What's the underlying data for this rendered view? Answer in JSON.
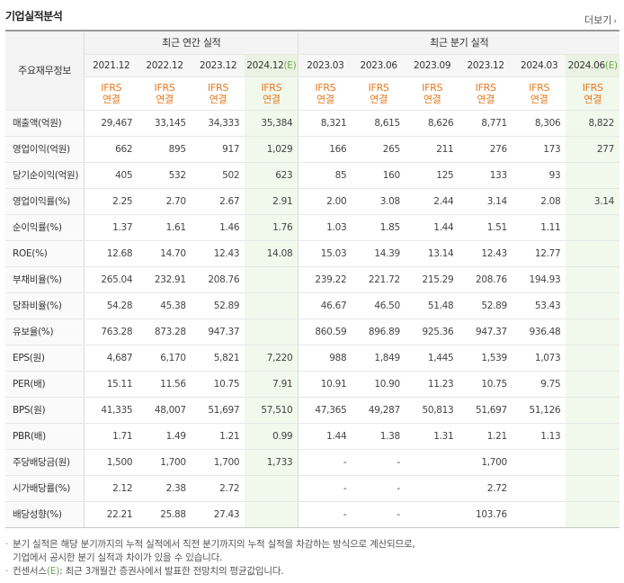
{
  "section": {
    "title": "기업실적분석",
    "more_label": "더보기"
  },
  "table": {
    "label_header": "주요재무정보",
    "annual_group": "최근 연간 실적",
    "quarterly_group": "최근 분기 실적",
    "periods": [
      {
        "label": "2021.12",
        "estimate": false
      },
      {
        "label": "2022.12",
        "estimate": false
      },
      {
        "label": "2023.12",
        "estimate": false
      },
      {
        "label": "2024.12",
        "estimate": true
      },
      {
        "label": "2023.03",
        "estimate": false
      },
      {
        "label": "2023.06",
        "estimate": false
      },
      {
        "label": "2023.09",
        "estimate": false
      },
      {
        "label": "2023.12",
        "estimate": false
      },
      {
        "label": "2024.03",
        "estimate": false
      },
      {
        "label": "2024.06",
        "estimate": true
      }
    ],
    "estimate_mark": "(E)",
    "basis_line1": "IFRS",
    "basis_line2": "연결",
    "rows": [
      {
        "label": "매출액(억원)",
        "group": true,
        "values": [
          "29,467",
          "33,145",
          "34,333",
          "35,384",
          "8,321",
          "8,615",
          "8,626",
          "8,771",
          "8,306",
          "8,822"
        ]
      },
      {
        "label": "영업이익(억원)",
        "group": false,
        "values": [
          "662",
          "895",
          "917",
          "1,029",
          "166",
          "265",
          "211",
          "276",
          "173",
          "277"
        ]
      },
      {
        "label": "당기순이익(억원)",
        "group": false,
        "values": [
          "405",
          "532",
          "502",
          "623",
          "85",
          "160",
          "125",
          "133",
          "93",
          ""
        ]
      },
      {
        "label": "영업이익률(%)",
        "group": true,
        "values": [
          "2.25",
          "2.70",
          "2.67",
          "2.91",
          "2.00",
          "3.08",
          "2.44",
          "3.14",
          "2.08",
          "3.14"
        ]
      },
      {
        "label": "순이익률(%)",
        "group": false,
        "values": [
          "1.37",
          "1.61",
          "1.46",
          "1.76",
          "1.03",
          "1.85",
          "1.44",
          "1.51",
          "1.11",
          ""
        ]
      },
      {
        "label": "ROE(%)",
        "group": false,
        "values": [
          "12.68",
          "14.70",
          "12.43",
          "14.08",
          "15.03",
          "14.39",
          "13.14",
          "12.43",
          "12.77",
          ""
        ]
      },
      {
        "label": "부채비율(%)",
        "group": true,
        "values": [
          "265.04",
          "232.91",
          "208.76",
          "",
          "239.22",
          "221.72",
          "215.29",
          "208.76",
          "194.93",
          ""
        ]
      },
      {
        "label": "당좌비율(%)",
        "group": false,
        "values": [
          "54.28",
          "45.38",
          "52.89",
          "",
          "46.67",
          "46.50",
          "51.48",
          "52.89",
          "53.43",
          ""
        ]
      },
      {
        "label": "유보율(%)",
        "group": false,
        "values": [
          "763.28",
          "873.28",
          "947.37",
          "",
          "860.59",
          "896.89",
          "925.36",
          "947.37",
          "936.48",
          ""
        ]
      },
      {
        "label": "EPS(원)",
        "group": true,
        "values": [
          "4,687",
          "6,170",
          "5,821",
          "7,220",
          "988",
          "1,849",
          "1,445",
          "1,539",
          "1,073",
          ""
        ]
      },
      {
        "label": "PER(배)",
        "group": false,
        "values": [
          "15.11",
          "11.56",
          "10.75",
          "7.91",
          "10.91",
          "10.90",
          "11.23",
          "10.75",
          "9.75",
          ""
        ]
      },
      {
        "label": "BPS(원)",
        "group": false,
        "values": [
          "41,335",
          "48,007",
          "51,697",
          "57,510",
          "47,365",
          "49,287",
          "50,813",
          "51,697",
          "51,126",
          ""
        ]
      },
      {
        "label": "PBR(배)",
        "group": false,
        "values": [
          "1.71",
          "1.49",
          "1.21",
          "0.99",
          "1.44",
          "1.38",
          "1.31",
          "1.21",
          "1.13",
          ""
        ]
      },
      {
        "label": "주당배당금(원)",
        "group": true,
        "values": [
          "1,500",
          "1,700",
          "1,700",
          "1,733",
          "-",
          "-",
          "",
          "1,700",
          "",
          ""
        ]
      },
      {
        "label": "시가배당률(%)",
        "group": false,
        "values": [
          "2.12",
          "2.38",
          "2.72",
          "",
          "-",
          "-",
          "",
          "2.72",
          "",
          ""
        ]
      },
      {
        "label": "배당성향(%)",
        "group": false,
        "values": [
          "22.21",
          "25.88",
          "27.43",
          "",
          "-",
          "-",
          "",
          "103.76",
          "",
          ""
        ]
      }
    ]
  },
  "notes": {
    "0": "분기 실적은 해당 분기까지의 누적 실적에서 직전 분기까지의 누적 실적을 차감하는 방식으로 계산되므로,",
    "1": "기업에서 공시한 분기 실적과 차이가 있을 수 있습니다.",
    "2a": "컨센서스",
    "2b": "(E)",
    "2c": ": 최근 3개월간 증권사에서 발표한 전망치의 평균값입니다."
  },
  "colors": {
    "basis_text": "#e6781e",
    "estimate_bg": "#f1f8ec",
    "estimate_mark": "#6aa84f"
  }
}
